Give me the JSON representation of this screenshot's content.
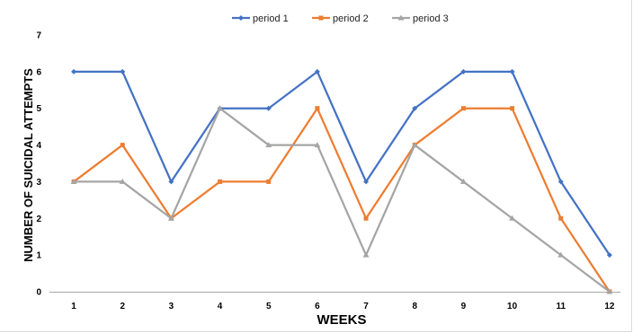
{
  "chart_data": {
    "type": "line",
    "title": "",
    "xlabel": "WEEKS",
    "ylabel": "NUMBER OF SUICIDAL  ATTEMPTS",
    "categories": [
      "1",
      "2",
      "3",
      "4",
      "5",
      "6",
      "7",
      "8",
      "9",
      "10",
      "11",
      "12"
    ],
    "ylim": [
      0,
      7
    ],
    "yticks": [
      "0",
      "1",
      "2",
      "3",
      "4",
      "5",
      "6",
      "7"
    ],
    "grid": false,
    "legend_position": "top",
    "series": [
      {
        "name": "period 1",
        "color": "#4472C4",
        "marker": "diamond",
        "values": [
          6,
          6,
          3,
          5,
          5,
          6,
          3,
          5,
          6,
          6,
          3,
          1
        ]
      },
      {
        "name": "period 2",
        "color": "#ED7D31",
        "marker": "square",
        "values": [
          3,
          4,
          2,
          3,
          3,
          5,
          2,
          4,
          5,
          5,
          2,
          0
        ]
      },
      {
        "name": "period 3",
        "color": "#A5A5A5",
        "marker": "triangle",
        "values": [
          3,
          3,
          2,
          5,
          4,
          4,
          1,
          4,
          3,
          2,
          1,
          0
        ]
      }
    ]
  }
}
